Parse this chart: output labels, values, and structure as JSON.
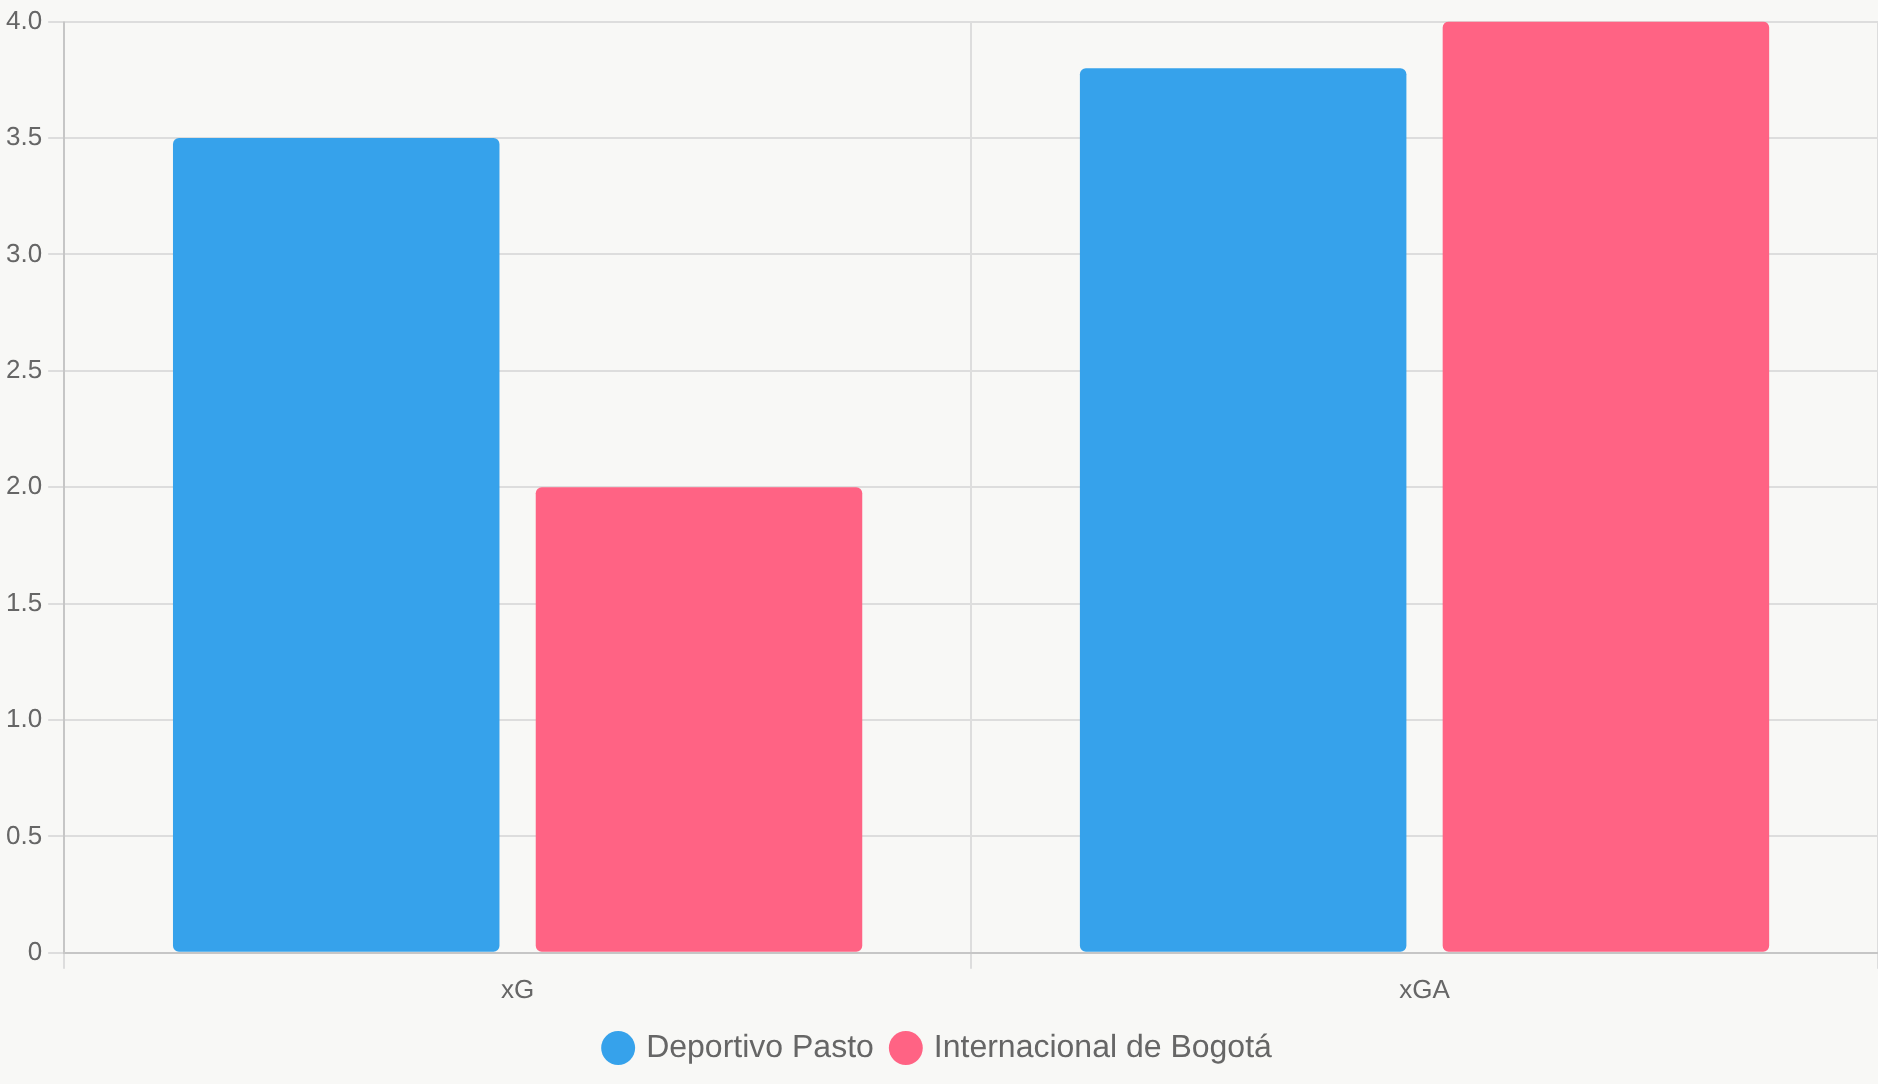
{
  "chart_data": {
    "type": "bar",
    "categories": [
      "xG",
      "xGA"
    ],
    "series": [
      {
        "name": "Deportivo Pasto",
        "color": "#36a2eb",
        "values": [
          3.5,
          3.8
        ]
      },
      {
        "name": "Internacional de Bogotá",
        "color": "#ff6384",
        "values": [
          2.0,
          4.0
        ]
      }
    ],
    "ylim": [
      0,
      4
    ],
    "yticks": [
      0,
      {
        "value": 0.5,
        "label": "0.5"
      },
      {
        "value": 1,
        "label": "1.0"
      },
      {
        "value": 1.5,
        "label": "1.5"
      },
      {
        "value": 2,
        "label": "2.0"
      },
      {
        "value": 2.5,
        "label": "2.5"
      },
      {
        "value": 3,
        "label": "3.0"
      },
      {
        "value": 3.5,
        "label": "3.5"
      },
      {
        "value": 4,
        "label": "4.0"
      }
    ],
    "grid": true,
    "legend": "bottom"
  }
}
